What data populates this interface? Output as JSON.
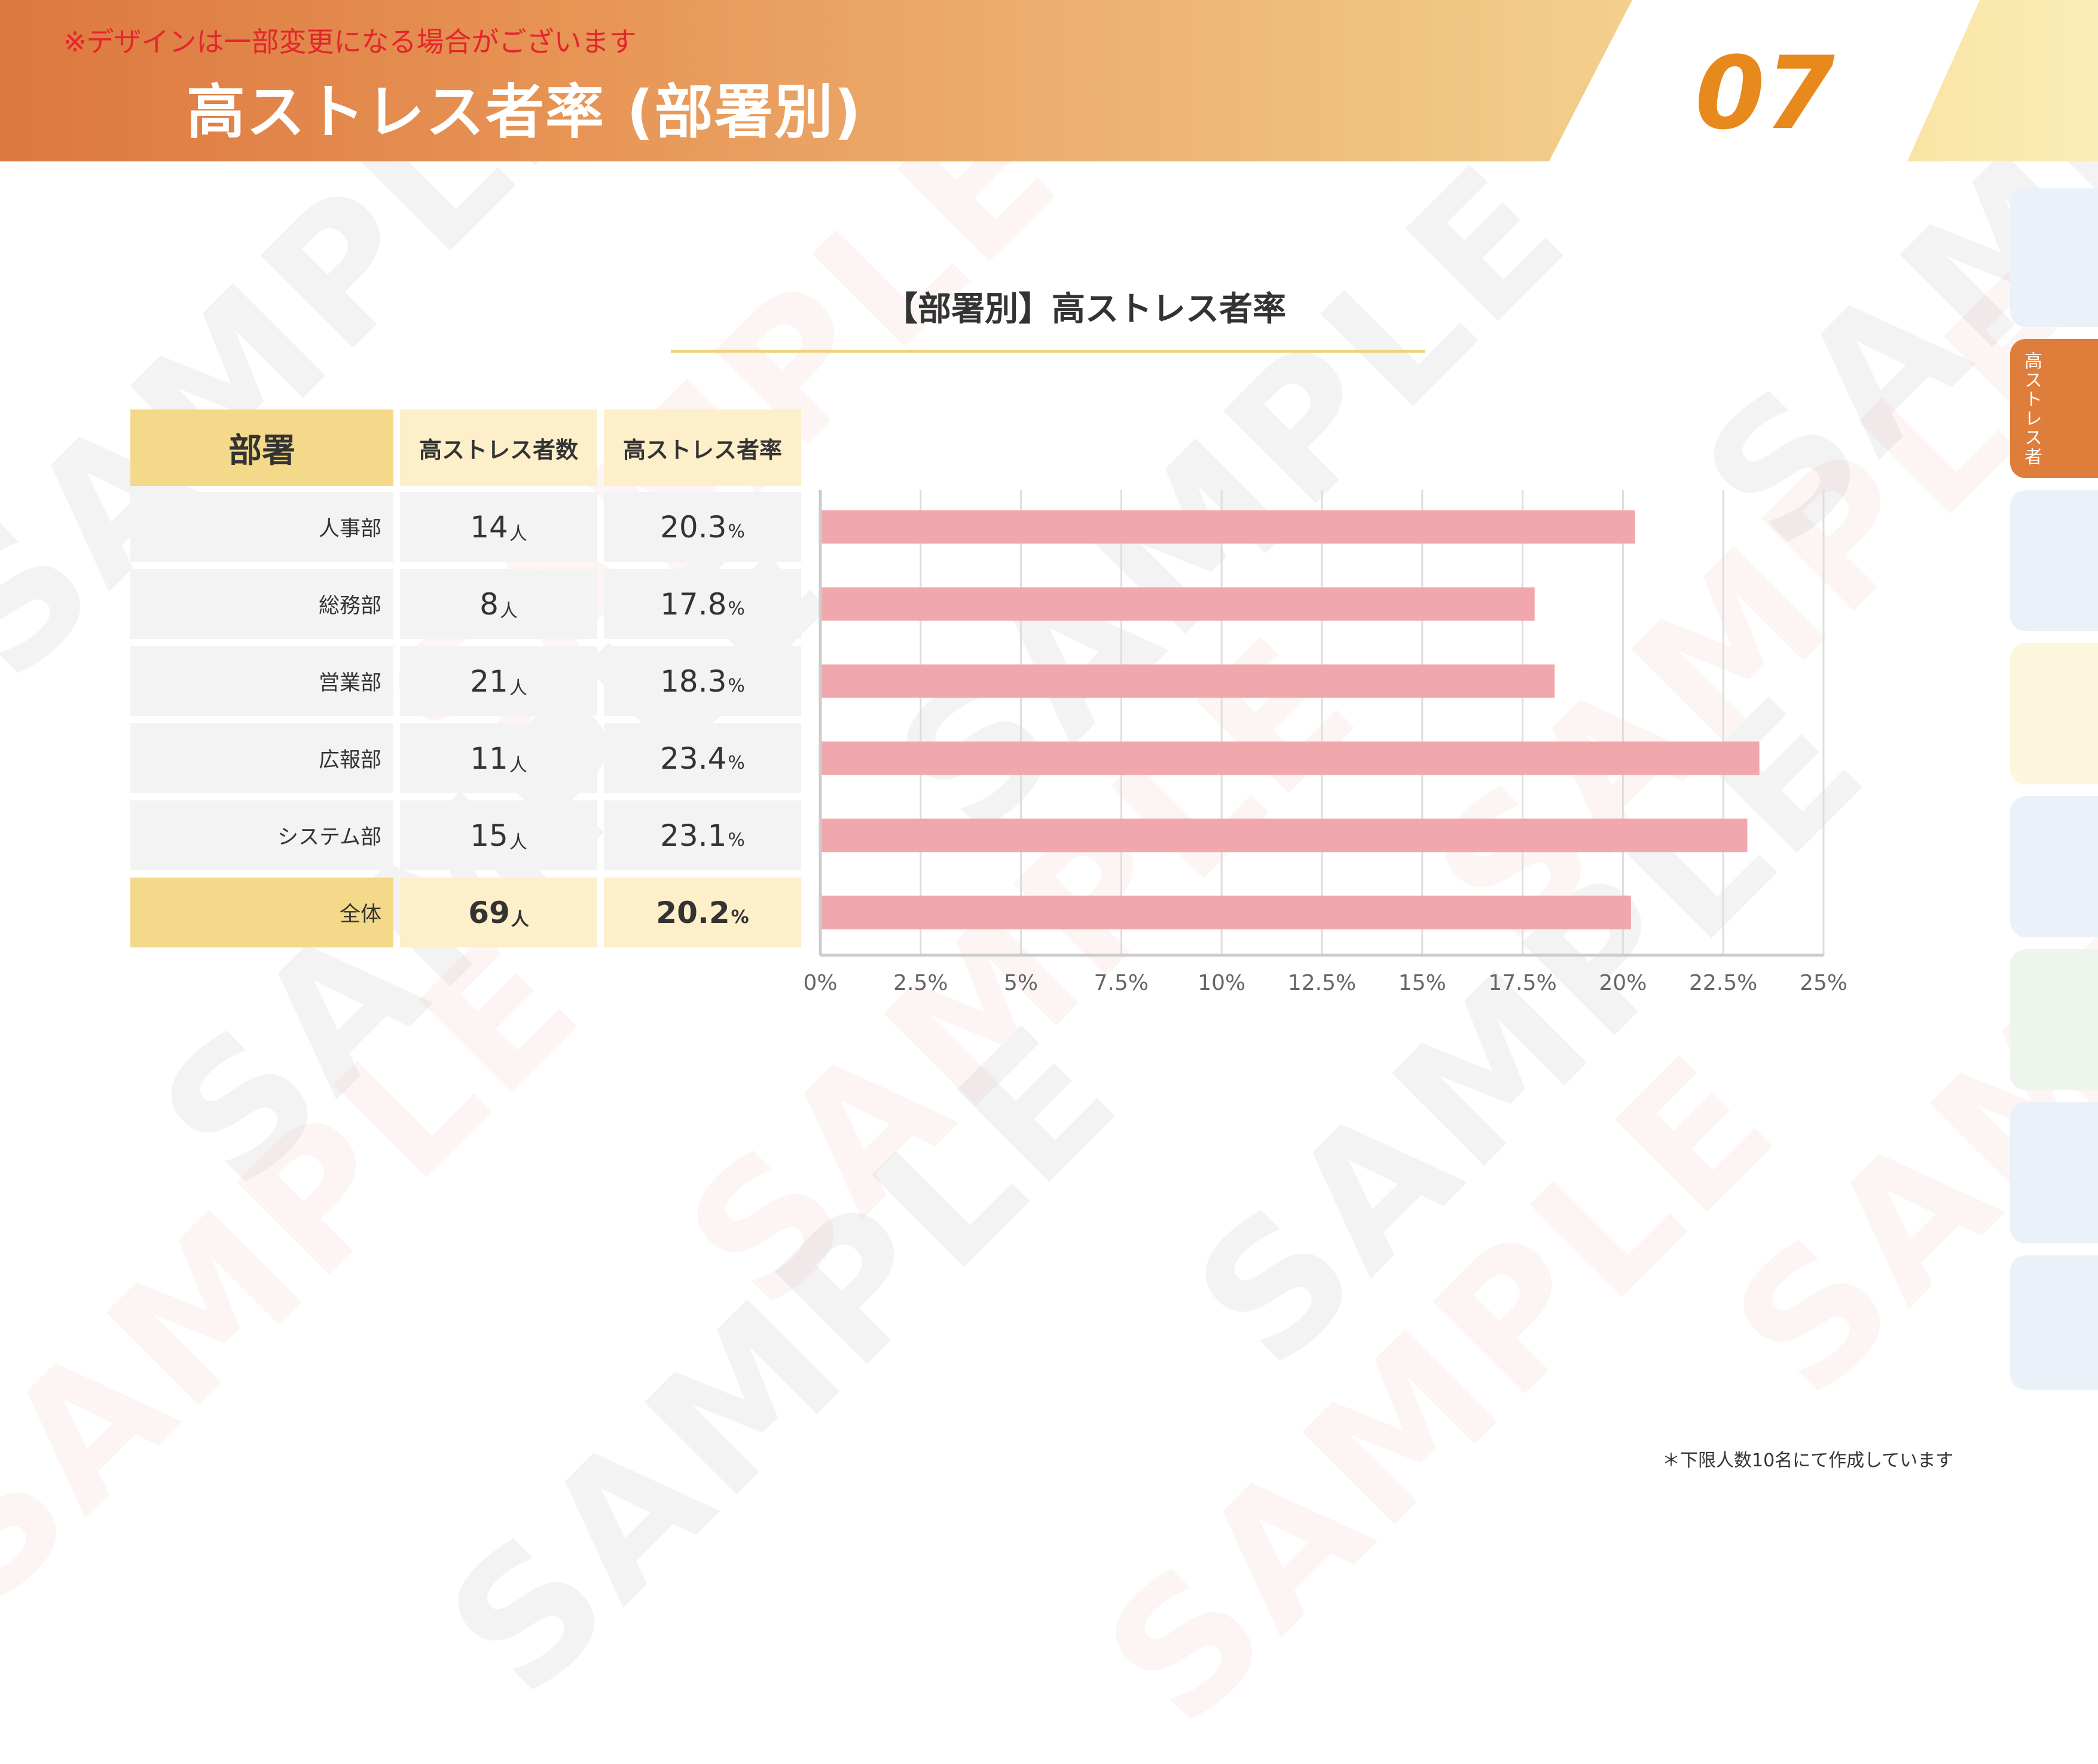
{
  "header": {
    "note": "※デザインは一部変更になる場合がございます",
    "title": "高ストレス者率 (部署別)",
    "page_number": "07"
  },
  "side_tabs": {
    "active_label": "高ストレス者"
  },
  "section": {
    "title": "【部署別】高ストレス者率"
  },
  "table": {
    "headers": {
      "department": "部署",
      "count": "高ストレス者数",
      "rate": "高ストレス者率"
    },
    "count_unit": "人",
    "rate_unit": "%",
    "rows": [
      {
        "name": "人事部",
        "count": "14",
        "rate": "20.3"
      },
      {
        "name": "総務部",
        "count": "8",
        "rate": "17.8"
      },
      {
        "name": "営業部",
        "count": "21",
        "rate": "18.3"
      },
      {
        "name": "広報部",
        "count": "11",
        "rate": "23.4"
      },
      {
        "name": "システム部",
        "count": "15",
        "rate": "23.1"
      },
      {
        "name": "全体",
        "count": "69",
        "rate": "20.2"
      }
    ]
  },
  "chart_data": {
    "type": "bar",
    "orientation": "horizontal",
    "categories": [
      "人事部",
      "総務部",
      "営業部",
      "広報部",
      "システム部",
      "全体"
    ],
    "values": [
      20.3,
      17.8,
      18.3,
      23.4,
      23.1,
      20.2
    ],
    "xlim": [
      0,
      25
    ],
    "x_ticks": [
      "0%",
      "2.5%",
      "5%",
      "7.5%",
      "10%",
      "12.5%",
      "15%",
      "17.5%",
      "20%",
      "22.5%",
      "25%"
    ],
    "grid": true,
    "bar_color": "#f1a8ad"
  },
  "footer": {
    "note": "＊下限人数10名にて作成しています"
  },
  "watermark_text": "SAMPLE",
  "colors": {
    "accent_orange": "#e8891d",
    "note_red": "#e4252c",
    "header_yellow": "#f4d98a",
    "header_cream": "#fdefc9"
  }
}
